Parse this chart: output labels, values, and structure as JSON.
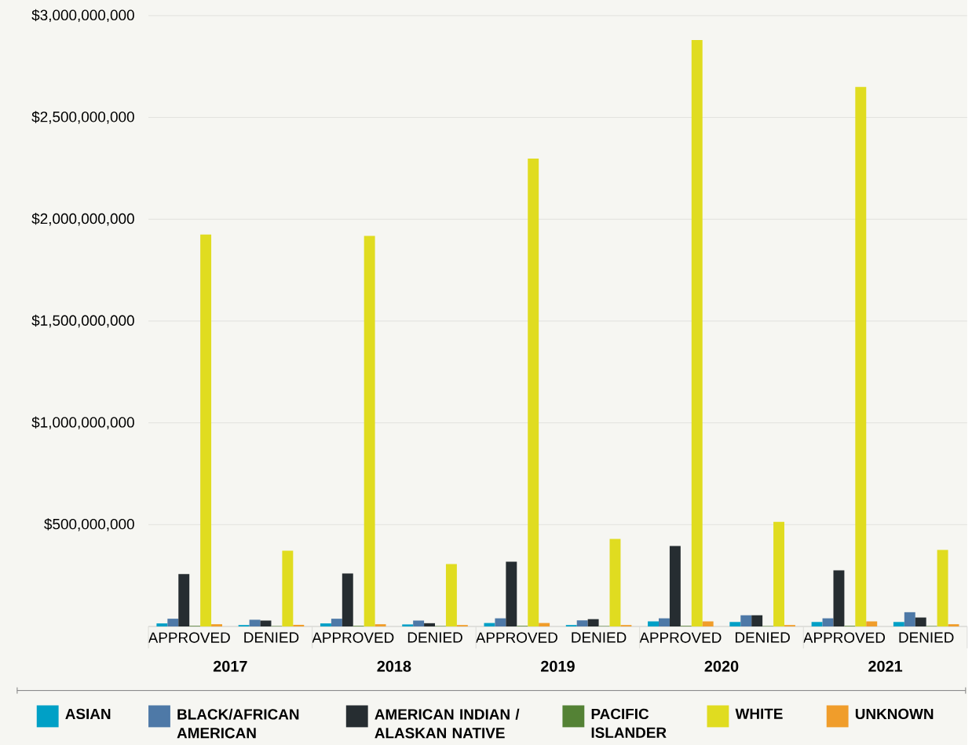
{
  "chart_data": {
    "type": "bar",
    "categories": [
      "APPROVED",
      "DENIED",
      "APPROVED",
      "DENIED",
      "APPROVED",
      "DENIED",
      "APPROVED",
      "DENIED",
      "APPROVED",
      "DENIED"
    ],
    "series": [
      {
        "name": "ASIAN",
        "color": "#00a0c6",
        "values": [
          15000000,
          7000000,
          15000000,
          10000000,
          17000000,
          7000000,
          25000000,
          22000000,
          22000000,
          22000000
        ]
      },
      {
        "name": "BLACK/AFRICAN AMERICAN",
        "color": "#4e79a7",
        "values": [
          38000000,
          33000000,
          38000000,
          29000000,
          40000000,
          30000000,
          40000000,
          55000000,
          40000000,
          70000000
        ]
      },
      {
        "name": "AMERICAN INDIAN / ALASKAN NATIVE",
        "color": "#262d31",
        "values": [
          257000000,
          29000000,
          260000000,
          16000000,
          318000000,
          36000000,
          395000000,
          55000000,
          276000000,
          44000000
        ]
      },
      {
        "name": "PACIFIC ISLANDER",
        "color": "#548235",
        "values": [
          3000000,
          2000000,
          3000000,
          2000000,
          3000000,
          2000000,
          3000000,
          2000000,
          3000000,
          2000000
        ]
      },
      {
        "name": "WHITE",
        "color": "#e0dc20",
        "values": [
          1925000000,
          372000000,
          1918000000,
          307000000,
          2298000000,
          430000000,
          2880000000,
          514000000,
          2650000000,
          376000000
        ]
      },
      {
        "name": "UNKNOWN",
        "color": "#f09d2b",
        "values": [
          11000000,
          8000000,
          11000000,
          7000000,
          17000000,
          7000000,
          25000000,
          7000000,
          25000000,
          11000000
        ]
      }
    ],
    "annotations": [
      "2017",
      "2018",
      "2019",
      "2020",
      "2021"
    ],
    "ylim": [
      0,
      3000000000
    ],
    "yticks": [
      {
        "value": 0,
        "label": null
      },
      {
        "value": 500000000,
        "label": "$500,000,000"
      },
      {
        "value": 1000000000,
        "label": "$1,000,000,000"
      },
      {
        "value": 1500000000,
        "label": "$1,500,000,000"
      },
      {
        "value": 2000000000,
        "label": "$2,000,000,000"
      },
      {
        "value": 2500000000,
        "label": "$2,500,000,000"
      },
      {
        "value": 3000000000,
        "label": "$3,000,000,000"
      }
    ],
    "grid": "y",
    "legend": "bottom"
  }
}
